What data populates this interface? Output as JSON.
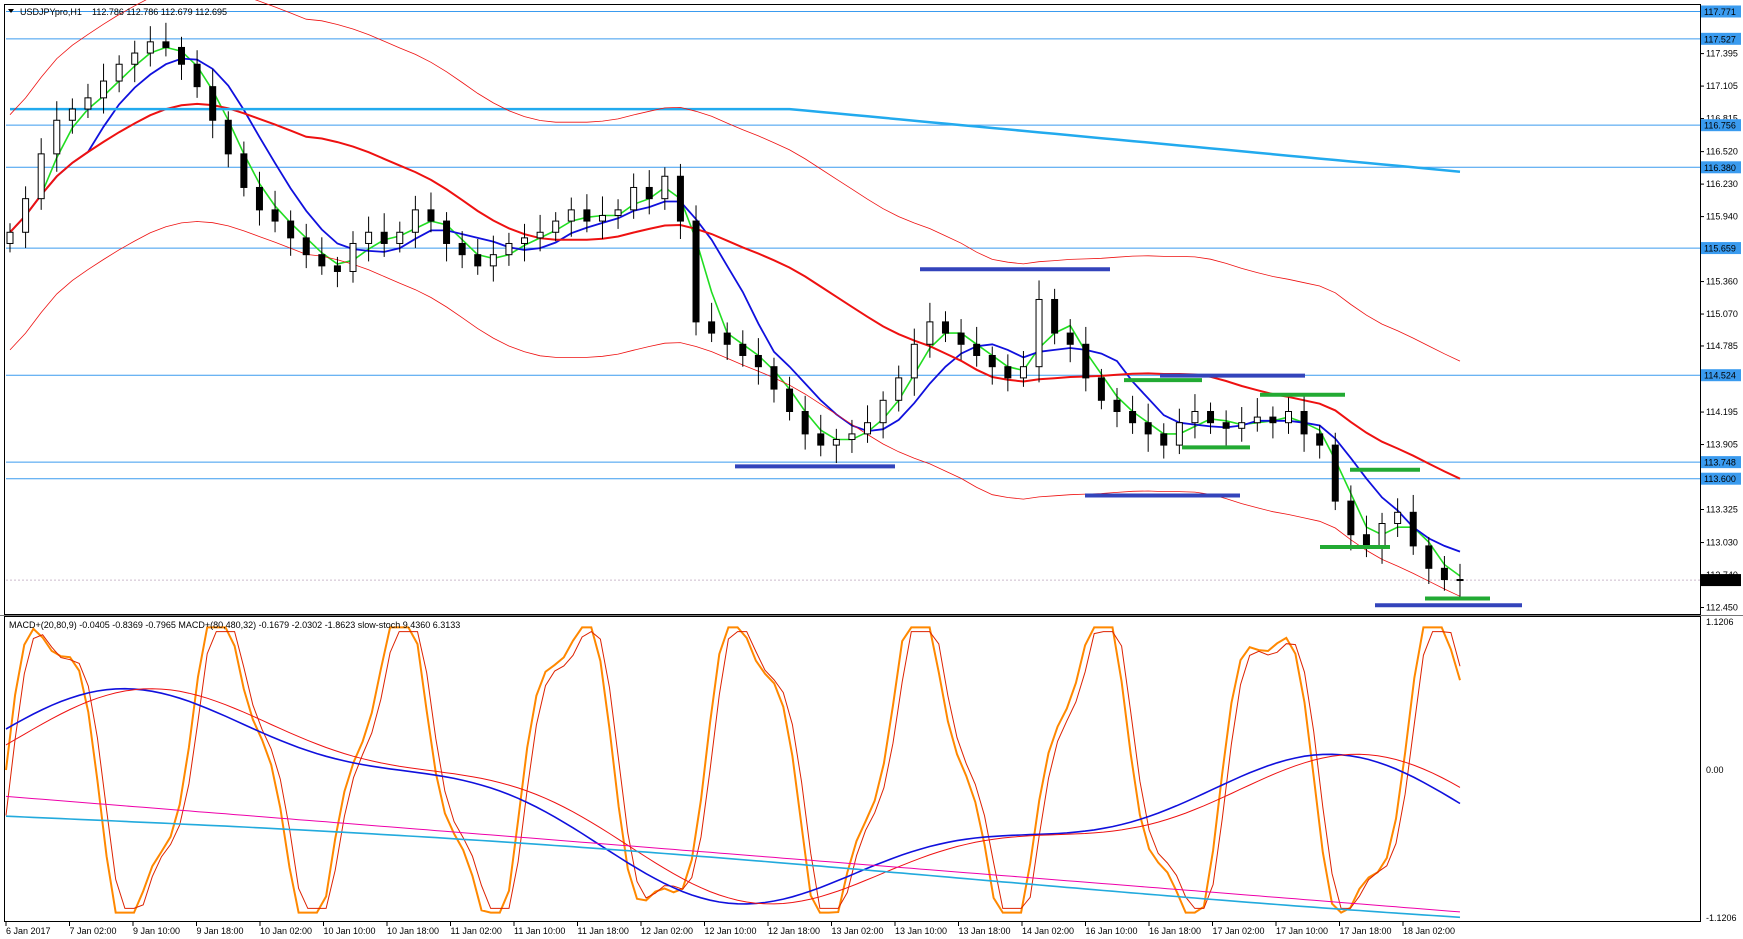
{
  "chart_data": {
    "type": "candlestick",
    "title": "USDJPYpro,H1",
    "ohlc_header": "112.786 112.786 112.679 112.695",
    "price_ylim": [
      112.41,
      117.82
    ],
    "price_ticks": [
      "117.771",
      "117.527",
      "117.395",
      "117.105",
      "116.815",
      "116.756",
      "116.520",
      "116.380",
      "116.230",
      "115.940",
      "115.659",
      "115.360",
      "115.070",
      "114.785",
      "114.524",
      "114.195",
      "113.905",
      "113.748",
      "113.600",
      "113.325",
      "113.030",
      "112.740",
      "112.695",
      "112.450"
    ],
    "highlighted_levels": [
      {
        "label": "117.527",
        "value": 117.527
      },
      {
        "label": "116.756",
        "value": 116.756
      },
      {
        "label": "116.380",
        "value": 116.38
      },
      {
        "label": "115.659",
        "value": 115.659
      },
      {
        "label": "114.524",
        "value": 114.524
      },
      {
        "label": "113.748",
        "value": 113.748
      },
      {
        "label": "113.600",
        "value": 113.6
      }
    ],
    "current_price": {
      "label": "112.695",
      "value": 112.695
    },
    "top_level": {
      "label": "117.771",
      "value": 117.771
    },
    "x_labels": [
      "6 Jan 2017",
      "7 Jan 02:00",
      "9 Jan 10:00",
      "9 Jan 18:00",
      "10 Jan 02:00",
      "10 Jan 10:00",
      "10 Jan 18:00",
      "11 Jan 02:00",
      "11 Jan 10:00",
      "11 Jan 18:00",
      "12 Jan 02:00",
      "12 Jan 10:00",
      "12 Jan 18:00",
      "13 Jan 02:00",
      "13 Jan 10:00",
      "13 Jan 18:00",
      "14 Jan 02:00",
      "16 Jan 10:00",
      "16 Jan 18:00",
      "17 Jan 02:00",
      "17 Jan 10:00",
      "17 Jan 18:00",
      "18 Jan 02:00"
    ],
    "close_series": [
      115.8,
      116.1,
      116.5,
      116.8,
      116.9,
      117.0,
      117.15,
      117.3,
      117.4,
      117.5,
      117.45,
      117.3,
      117.1,
      116.8,
      116.5,
      116.2,
      116.0,
      115.9,
      115.75,
      115.6,
      115.5,
      115.45,
      115.7,
      115.8,
      115.7,
      115.8,
      116.0,
      115.9,
      115.7,
      115.6,
      115.5,
      115.6,
      115.7,
      115.75,
      115.8,
      115.9,
      116.0,
      115.9,
      115.95,
      116.0,
      116.2,
      116.1,
      116.3,
      115.9,
      115.0,
      114.9,
      114.8,
      114.7,
      114.6,
      114.4,
      114.2,
      114.0,
      113.9,
      113.95,
      114.0,
      114.1,
      114.3,
      114.5,
      114.8,
      115.0,
      114.9,
      114.8,
      114.7,
      114.6,
      114.5,
      114.6,
      115.2,
      114.9,
      114.8,
      114.5,
      114.3,
      114.2,
      114.1,
      114.0,
      113.9,
      114.1,
      114.2,
      114.1,
      114.05,
      114.1,
      114.15,
      114.1,
      114.2,
      114.0,
      113.9,
      113.4,
      113.1,
      113.0,
      113.2,
      113.3,
      113.0,
      112.8,
      112.7,
      112.695
    ],
    "indicators": {
      "ma_fast": "green",
      "ma_mid": "blue",
      "ma_slow": "red",
      "ma_long": "light-blue",
      "envelope": "red-thin"
    },
    "drawn_lines": [
      {
        "color": "#3344bb",
        "price": 115.47
      },
      {
        "color": "#3344bb",
        "price": 113.71
      },
      {
        "color": "#3344bb",
        "price": 114.52
      },
      {
        "color": "#3344bb",
        "price": 113.45
      },
      {
        "color": "#3344bb",
        "price": 112.47
      },
      {
        "color": "#22aa33",
        "price": 114.48
      },
      {
        "color": "#22aa33",
        "price": 114.35
      },
      {
        "color": "#22aa33",
        "price": 113.88
      },
      {
        "color": "#22aa33",
        "price": 113.68
      },
      {
        "color": "#22aa33",
        "price": 112.99
      },
      {
        "color": "#22aa33",
        "price": 112.53
      }
    ],
    "sub_panel": {
      "label": "MACD+(20,80,9) -0.0405 -0.8369 -0.7965  MACD+(80,480,32) -0.1679 -2.0302 -1.8623  slow-stoch 9.4360 6.3133",
      "ticks": [
        "1.1206",
        "0.00",
        "-1.1206"
      ],
      "ylim": [
        -1.1206,
        1.1206
      ]
    },
    "colors": {
      "bull": "#ffffff",
      "bear": "#000000",
      "level_line": "#3a9bef",
      "level_tag": "#3a9bef",
      "current_tag": "#000000",
      "ma_fast": "#22dd22",
      "ma_mid": "#1010dd",
      "ma_slow": "#ee1111",
      "ma_long": "#22aaee",
      "stoch": "#ff8800",
      "stoch_signal": "#dd2200",
      "macd_slow": "#22aadd",
      "macd_slow_signal": "#ee00aa"
    }
  }
}
